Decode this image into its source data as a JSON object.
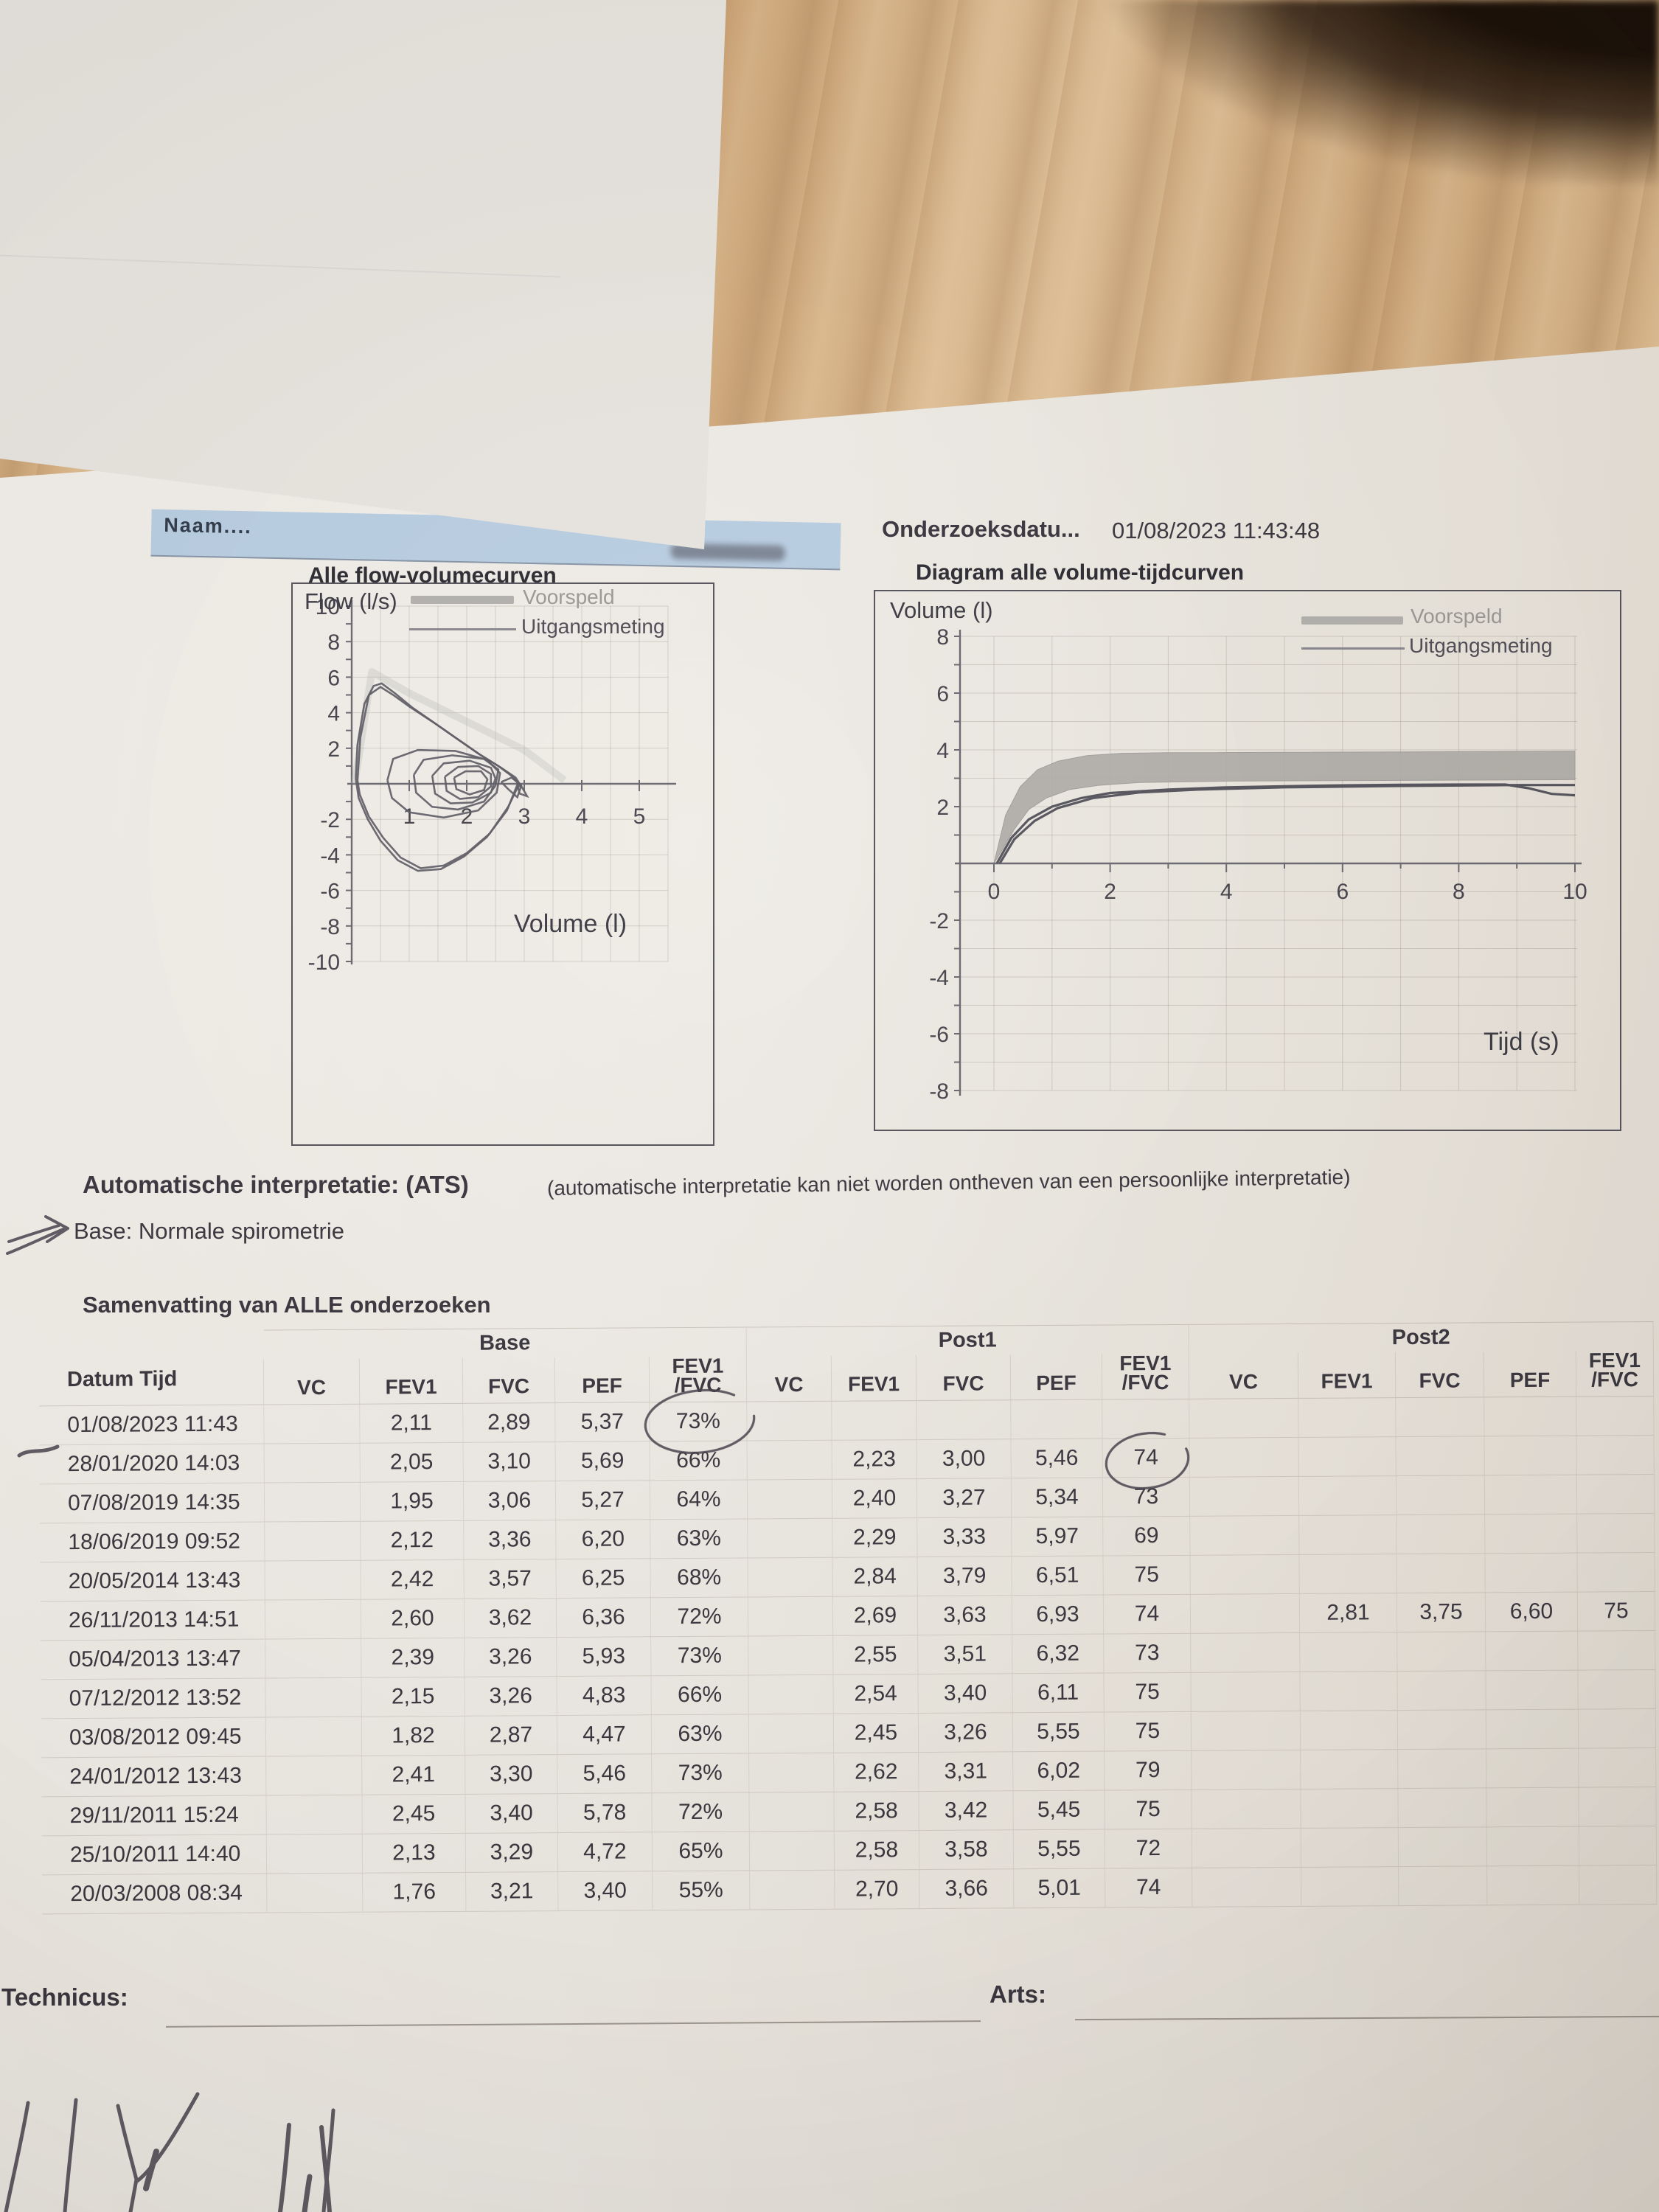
{
  "patient_band": {
    "naam_label": "Naam...."
  },
  "exam": {
    "label": "Onderzoeksdatu...",
    "value": "01/08/2023 11:43:48"
  },
  "interpretation": {
    "heading": "Automatische interpretatie: (ATS)",
    "note": "(automatische interpretatie kan niet worden ontheven van een persoonlijke interpretatie)",
    "base_result": "Base: Normale spirometrie"
  },
  "summary": {
    "title": "Samenvatting van ALLE onderzoeken",
    "group_headers": [
      "Base",
      "Post1",
      "Post2"
    ],
    "date_column": "Datum Tijd",
    "metric_columns": [
      "VC",
      "FEV1",
      "FVC",
      "PEF",
      "FEV1/FVC"
    ],
    "rows": [
      {
        "datum": "01/08/2023 11:43",
        "base": [
          "",
          "2,11",
          "2,89",
          "5,37",
          "73%"
        ],
        "post1": [
          "",
          "",
          "",
          "",
          ""
        ],
        "post2": [
          "",
          "",
          "",
          "",
          ""
        ]
      },
      {
        "datum": "28/01/2020 14:03",
        "base": [
          "",
          "2,05",
          "3,10",
          "5,69",
          "66%"
        ],
        "post1": [
          "",
          "2,23",
          "3,00",
          "5,46",
          "74"
        ],
        "post2": [
          "",
          "",
          "",
          "",
          ""
        ]
      },
      {
        "datum": "07/08/2019 14:35",
        "base": [
          "",
          "1,95",
          "3,06",
          "5,27",
          "64%"
        ],
        "post1": [
          "",
          "2,40",
          "3,27",
          "5,34",
          "73"
        ],
        "post2": [
          "",
          "",
          "",
          "",
          ""
        ]
      },
      {
        "datum": "18/06/2019 09:52",
        "base": [
          "",
          "2,12",
          "3,36",
          "6,20",
          "63%"
        ],
        "post1": [
          "",
          "2,29",
          "3,33",
          "5,97",
          "69"
        ],
        "post2": [
          "",
          "",
          "",
          "",
          ""
        ]
      },
      {
        "datum": "20/05/2014 13:43",
        "base": [
          "",
          "2,42",
          "3,57",
          "6,25",
          "68%"
        ],
        "post1": [
          "",
          "2,84",
          "3,79",
          "6,51",
          "75"
        ],
        "post2": [
          "",
          "",
          "",
          "",
          ""
        ]
      },
      {
        "datum": "26/11/2013 14:51",
        "base": [
          "",
          "2,60",
          "3,62",
          "6,36",
          "72%"
        ],
        "post1": [
          "",
          "2,69",
          "3,63",
          "6,93",
          "74"
        ],
        "post2": [
          "",
          "2,81",
          "3,75",
          "6,60",
          "75"
        ]
      },
      {
        "datum": "05/04/2013 13:47",
        "base": [
          "",
          "2,39",
          "3,26",
          "5,93",
          "73%"
        ],
        "post1": [
          "",
          "2,55",
          "3,51",
          "6,32",
          "73"
        ],
        "post2": [
          "",
          "",
          "",
          "",
          ""
        ]
      },
      {
        "datum": "07/12/2012 13:52",
        "base": [
          "",
          "2,15",
          "3,26",
          "4,83",
          "66%"
        ],
        "post1": [
          "",
          "2,54",
          "3,40",
          "6,11",
          "75"
        ],
        "post2": [
          "",
          "",
          "",
          "",
          ""
        ]
      },
      {
        "datum": "03/08/2012 09:45",
        "base": [
          "",
          "1,82",
          "2,87",
          "4,47",
          "63%"
        ],
        "post1": [
          "",
          "2,45",
          "3,26",
          "5,55",
          "75"
        ],
        "post2": [
          "",
          "",
          "",
          "",
          ""
        ]
      },
      {
        "datum": "24/01/2012 13:43",
        "base": [
          "",
          "2,41",
          "3,30",
          "5,46",
          "73%"
        ],
        "post1": [
          "",
          "2,62",
          "3,31",
          "6,02",
          "79"
        ],
        "post2": [
          "",
          "",
          "",
          "",
          ""
        ]
      },
      {
        "datum": "29/11/2011 15:24",
        "base": [
          "",
          "2,45",
          "3,40",
          "5,78",
          "72%"
        ],
        "post1": [
          "",
          "2,58",
          "3,42",
          "5,45",
          "75"
        ],
        "post2": [
          "",
          "",
          "",
          "",
          ""
        ]
      },
      {
        "datum": "25/10/2011 14:40",
        "base": [
          "",
          "2,13",
          "3,29",
          "4,72",
          "65%"
        ],
        "post1": [
          "",
          "2,58",
          "3,58",
          "5,55",
          "72"
        ],
        "post2": [
          "",
          "",
          "",
          "",
          ""
        ]
      },
      {
        "datum": "20/03/2008 08:34",
        "base": [
          "",
          "1,76",
          "3,21",
          "3,40",
          "55%"
        ],
        "post1": [
          "",
          "2,70",
          "3,66",
          "5,01",
          "74"
        ],
        "post2": [
          "",
          "",
          "",
          "",
          ""
        ]
      }
    ]
  },
  "footer": {
    "technicus_label": "Technicus:",
    "arts_label": "Arts:"
  },
  "hand_annotations": {
    "circled_values": [
      "73%",
      "74"
    ],
    "arrow_target": "Base: Normale spirometrie"
  },
  "colors": {
    "band_blue": "#b9cee3",
    "ink": "#39363f",
    "legend_gray": "#9b9995",
    "wood": "#d6b289",
    "pen": "#46404c"
  },
  "chart_data": [
    {
      "id": "flow_volume",
      "type": "line",
      "title": "Alle flow-volumecurven",
      "xlabel": "Volume (l)",
      "ylabel": "Flow (l/s)",
      "xlim": [
        0,
        5.5
      ],
      "ylim": [
        -10,
        10
      ],
      "x_ticks": [
        1,
        2,
        3,
        4,
        5
      ],
      "y_ticks": [
        10,
        8,
        6,
        4,
        2,
        -2,
        -4,
        -6,
        -8,
        -10
      ],
      "legend": [
        "Voorspeld",
        "Uitgangsmeting"
      ],
      "grid": true,
      "legend_position": "top-right",
      "predicted": [
        [
          0.05,
          0
        ],
        [
          0.35,
          6.3
        ],
        [
          1.0,
          5.1
        ],
        [
          2.0,
          3.5
        ],
        [
          3.0,
          1.9
        ],
        [
          3.7,
          0.2
        ]
      ],
      "loops": [
        [
          [
            0.07,
            0.3
          ],
          [
            0.1,
            2.2
          ],
          [
            0.22,
            4.5
          ],
          [
            0.38,
            5.5
          ],
          [
            0.52,
            5.65
          ],
          [
            0.75,
            5.1
          ],
          [
            1.05,
            4.3
          ],
          [
            1.45,
            3.4
          ],
          [
            1.85,
            2.5
          ],
          [
            2.25,
            1.6
          ],
          [
            2.6,
            0.9
          ],
          [
            2.85,
            0.35
          ],
          [
            2.98,
            -0.3
          ],
          [
            3.05,
            -0.7
          ],
          [
            2.92,
            -0.55
          ],
          [
            2.88,
            -0.05
          ],
          [
            2.7,
            -1.5
          ],
          [
            2.35,
            -3.0
          ],
          [
            1.95,
            -4.1
          ],
          [
            1.55,
            -4.8
          ],
          [
            1.15,
            -4.9
          ],
          [
            0.8,
            -4.3
          ],
          [
            0.5,
            -3.2
          ],
          [
            0.28,
            -2.0
          ],
          [
            0.12,
            -0.8
          ],
          [
            0.07,
            0.3
          ]
        ],
        [
          [
            0.1,
            0.2
          ],
          [
            0.15,
            2.6
          ],
          [
            0.3,
            5.0
          ],
          [
            0.5,
            5.45
          ],
          [
            0.72,
            5.0
          ],
          [
            1.0,
            4.35
          ],
          [
            1.4,
            3.5
          ],
          [
            1.8,
            2.6
          ],
          [
            2.2,
            1.7
          ],
          [
            2.55,
            1.0
          ],
          [
            2.8,
            0.4
          ],
          [
            2.95,
            -0.2
          ],
          [
            2.9,
            -0.1
          ],
          [
            2.72,
            -1.3
          ],
          [
            2.4,
            -2.8
          ],
          [
            2.0,
            -3.9
          ],
          [
            1.6,
            -4.6
          ],
          [
            1.2,
            -4.75
          ],
          [
            0.85,
            -4.15
          ],
          [
            0.55,
            -3.05
          ],
          [
            0.3,
            -1.85
          ],
          [
            0.14,
            -0.6
          ],
          [
            0.1,
            0.2
          ]
        ],
        [
          [
            0.62,
            0.2
          ],
          [
            0.72,
            1.4
          ],
          [
            1.15,
            1.9
          ],
          [
            1.8,
            1.85
          ],
          [
            2.35,
            1.35
          ],
          [
            2.58,
            0.6
          ],
          [
            2.52,
            -0.5
          ],
          [
            2.2,
            -1.5
          ],
          [
            1.6,
            -1.9
          ],
          [
            1.0,
            -1.6
          ],
          [
            0.7,
            -0.8
          ],
          [
            0.62,
            0.2
          ]
        ],
        [
          [
            1.08,
            0.5
          ],
          [
            1.25,
            1.35
          ],
          [
            1.75,
            1.6
          ],
          [
            2.3,
            1.4
          ],
          [
            2.55,
            0.8
          ],
          [
            2.5,
            -0.1
          ],
          [
            2.3,
            -1.0
          ],
          [
            1.85,
            -1.45
          ],
          [
            1.4,
            -1.3
          ],
          [
            1.12,
            -0.5
          ],
          [
            1.08,
            0.5
          ]
        ],
        [
          [
            1.4,
            0.45
          ],
          [
            1.6,
            1.15
          ],
          [
            2.05,
            1.3
          ],
          [
            2.42,
            0.9
          ],
          [
            2.5,
            0.3
          ],
          [
            2.42,
            -0.5
          ],
          [
            2.1,
            -1.05
          ],
          [
            1.72,
            -1.1
          ],
          [
            1.45,
            -0.55
          ],
          [
            1.4,
            0.45
          ]
        ],
        [
          [
            1.62,
            0.4
          ],
          [
            1.85,
            0.95
          ],
          [
            2.2,
            1.0
          ],
          [
            2.42,
            0.55
          ],
          [
            2.42,
            -0.15
          ],
          [
            2.2,
            -0.75
          ],
          [
            1.88,
            -0.85
          ],
          [
            1.65,
            -0.4
          ],
          [
            1.62,
            0.4
          ]
        ],
        [
          [
            1.78,
            0.35
          ],
          [
            1.98,
            0.7
          ],
          [
            2.25,
            0.7
          ],
          [
            2.36,
            0.25
          ],
          [
            2.3,
            -0.35
          ],
          [
            2.05,
            -0.6
          ],
          [
            1.82,
            -0.3
          ],
          [
            1.78,
            0.35
          ]
        ],
        [
          [
            2.6,
            0.1
          ],
          [
            2.78,
            0.35
          ],
          [
            2.95,
            -0.1
          ],
          [
            2.88,
            -0.75
          ],
          [
            2.72,
            -0.3
          ],
          [
            2.6,
            0.1
          ]
        ]
      ]
    },
    {
      "id": "volume_time",
      "type": "line",
      "title": "Diagram alle volume-tijdcurven",
      "xlabel": "Tijd (s)",
      "ylabel": "Volume (l)",
      "xlim": [
        -0.6,
        10.3
      ],
      "ylim": [
        -8,
        8
      ],
      "x_ticks": [
        0,
        2,
        4,
        6,
        8,
        10
      ],
      "y_ticks": [
        8,
        6,
        4,
        2,
        -2,
        -4,
        -6,
        -8
      ],
      "legend": [
        "Voorspeld",
        "Uitgangsmeting"
      ],
      "grid": true,
      "legend_position": "top-right",
      "band": {
        "name": "Voorspeld",
        "top": [
          [
            0,
            0
          ],
          [
            0.2,
            1.7
          ],
          [
            0.45,
            2.7
          ],
          [
            0.75,
            3.3
          ],
          [
            1.1,
            3.6
          ],
          [
            1.6,
            3.8
          ],
          [
            2.2,
            3.88
          ],
          [
            3,
            3.9
          ],
          [
            10,
            3.95
          ]
        ],
        "bottom": [
          [
            10,
            2.95
          ],
          [
            4,
            2.9
          ],
          [
            2.5,
            2.85
          ],
          [
            1.8,
            2.75
          ],
          [
            1.3,
            2.6
          ],
          [
            0.9,
            2.3
          ],
          [
            0.6,
            1.9
          ],
          [
            0.35,
            1.2
          ],
          [
            0.15,
            0.5
          ],
          [
            0,
            0
          ]
        ]
      },
      "series": [
        {
          "name": "Uitgangsmeting",
          "points": [
            [
              0.05,
              0
            ],
            [
              0.3,
              0.9
            ],
            [
              0.6,
              1.55
            ],
            [
              1.0,
              2.0
            ],
            [
              1.5,
              2.3
            ],
            [
              2.0,
              2.48
            ],
            [
              3.0,
              2.6
            ],
            [
              4.0,
              2.68
            ],
            [
              5.0,
              2.72
            ],
            [
              6.0,
              2.75
            ],
            [
              7.0,
              2.77
            ],
            [
              8.0,
              2.78
            ],
            [
              8.8,
              2.78
            ],
            [
              9.2,
              2.65
            ],
            [
              9.6,
              2.45
            ],
            [
              10,
              2.4
            ]
          ]
        },
        {
          "name": "Uitgangsmeting-2",
          "points": [
            [
              0.1,
              0
            ],
            [
              0.35,
              0.85
            ],
            [
              0.7,
              1.5
            ],
            [
              1.1,
              1.95
            ],
            [
              1.7,
              2.3
            ],
            [
              2.5,
              2.5
            ],
            [
              3.5,
              2.6
            ],
            [
              5,
              2.68
            ],
            [
              7,
              2.73
            ],
            [
              9,
              2.76
            ],
            [
              10,
              2.76
            ]
          ]
        }
      ]
    }
  ]
}
